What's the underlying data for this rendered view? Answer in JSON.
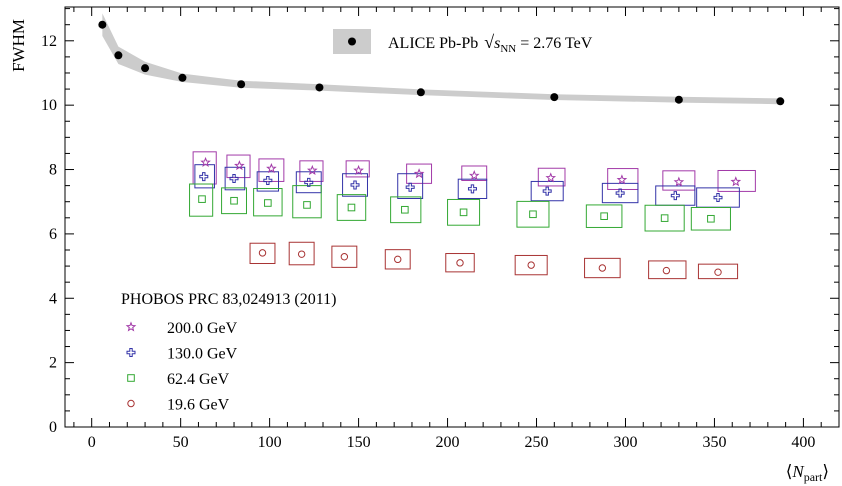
{
  "chart_data": {
    "type": "scatter",
    "xlabel": "⟨N_part⟩",
    "ylabel": "FWHM",
    "xlim": [
      -15,
      420
    ],
    "ylim": [
      0,
      13.05
    ],
    "x_ticks": [
      0,
      50,
      100,
      150,
      200,
      250,
      300,
      350,
      400
    ],
    "y_ticks": [
      0,
      2,
      4,
      6,
      8,
      10,
      12
    ],
    "grid": false,
    "alice": {
      "label": "ALICE Pb-Pb √s_NN = 2.76 TeV",
      "label_text": "ALICE Pb-Pb",
      "label_energy": "= 2.76 TeV",
      "points": [
        {
          "x": 6,
          "y": 12.5
        },
        {
          "x": 15,
          "y": 11.55
        },
        {
          "x": 30,
          "y": 11.15
        },
        {
          "x": 51,
          "y": 10.85
        },
        {
          "x": 84,
          "y": 10.65
        },
        {
          "x": 128,
          "y": 10.55
        },
        {
          "x": 185,
          "y": 10.4
        },
        {
          "x": 260,
          "y": 10.25
        },
        {
          "x": 330,
          "y": 10.17
        },
        {
          "x": 387,
          "y": 10.12
        }
      ],
      "band_half_width": [
        0.35,
        0.27,
        0.2,
        0.13,
        0.11,
        0.1,
        0.09,
        0.09,
        0.09,
        0.09
      ],
      "marker_color": "#000000",
      "band_color": "#cccccc"
    },
    "phobos_title": "PHOBOS PRC 83,024913 (2011)",
    "series": [
      {
        "name": "200.0 GeV",
        "marker": "star",
        "color": "#a23aa8",
        "points": [
          {
            "x": 64,
            "y": 8.22,
            "ylo": 7.55,
            "yhi": 8.55,
            "xlo": 57,
            "xhi": 70
          },
          {
            "x": 83,
            "y": 8.12,
            "ylo": 7.75,
            "yhi": 8.45,
            "xlo": 76,
            "xhi": 89
          },
          {
            "x": 101,
            "y": 8.03,
            "ylo": 7.63,
            "yhi": 8.33,
            "xlo": 94,
            "xhi": 108
          },
          {
            "x": 124,
            "y": 7.97,
            "ylo": 7.63,
            "yhi": 8.27,
            "xlo": 117,
            "xhi": 130
          },
          {
            "x": 150,
            "y": 7.97,
            "ylo": 7.77,
            "yhi": 8.27,
            "xlo": 143,
            "xhi": 156
          },
          {
            "x": 184,
            "y": 7.87,
            "ylo": 7.57,
            "yhi": 8.17,
            "xlo": 177,
            "xhi": 191
          },
          {
            "x": 215,
            "y": 7.81,
            "ylo": 7.66,
            "yhi": 8.11,
            "xlo": 208,
            "xhi": 222
          },
          {
            "x": 258,
            "y": 7.74,
            "ylo": 7.49,
            "yhi": 8.04,
            "xlo": 251,
            "xhi": 266
          },
          {
            "x": 298,
            "y": 7.68,
            "ylo": 7.38,
            "yhi": 8.03,
            "xlo": 290,
            "xhi": 307
          },
          {
            "x": 330,
            "y": 7.61,
            "ylo": 7.36,
            "yhi": 7.96,
            "xlo": 321,
            "xhi": 339
          },
          {
            "x": 362,
            "y": 7.62,
            "ylo": 7.32,
            "yhi": 7.97,
            "xlo": 352,
            "xhi": 373
          }
        ]
      },
      {
        "name": "130.0 GeV",
        "marker": "cross",
        "color": "#3333a8",
        "points": [
          {
            "x": 63,
            "y": 7.78,
            "ylo": 7.43,
            "yhi": 8.15,
            "xlo": 58,
            "xhi": 69
          },
          {
            "x": 80,
            "y": 7.72,
            "ylo": 7.37,
            "yhi": 8.07,
            "xlo": 75,
            "xhi": 86
          },
          {
            "x": 99,
            "y": 7.66,
            "ylo": 7.33,
            "yhi": 7.93,
            "xlo": 93,
            "xhi": 105
          },
          {
            "x": 122,
            "y": 7.6,
            "ylo": 7.28,
            "yhi": 7.93,
            "xlo": 115,
            "xhi": 129
          },
          {
            "x": 148,
            "y": 7.52,
            "ylo": 7.17,
            "yhi": 7.87,
            "xlo": 141,
            "xhi": 155
          },
          {
            "x": 179,
            "y": 7.45,
            "ylo": 7.1,
            "yhi": 7.87,
            "xlo": 172,
            "xhi": 186
          },
          {
            "x": 214,
            "y": 7.4,
            "ylo": 7.1,
            "yhi": 7.7,
            "xlo": 206,
            "xhi": 222
          },
          {
            "x": 256,
            "y": 7.33,
            "ylo": 7.03,
            "yhi": 7.63,
            "xlo": 247,
            "xhi": 265
          },
          {
            "x": 297,
            "y": 7.27,
            "ylo": 6.97,
            "yhi": 7.57,
            "xlo": 287,
            "xhi": 307
          },
          {
            "x": 328,
            "y": 7.19,
            "ylo": 6.89,
            "yhi": 7.49,
            "xlo": 317,
            "xhi": 339
          },
          {
            "x": 352,
            "y": 7.13,
            "ylo": 6.83,
            "yhi": 7.43,
            "xlo": 340,
            "xhi": 364
          }
        ]
      },
      {
        "name": "62.4 GeV",
        "marker": "square",
        "color": "#33a833",
        "points": [
          {
            "x": 62,
            "y": 7.08,
            "ylo": 6.55,
            "yhi": 7.55,
            "xlo": 55,
            "xhi": 68
          },
          {
            "x": 80,
            "y": 7.03,
            "ylo": 6.63,
            "yhi": 7.43,
            "xlo": 73,
            "xhi": 87
          },
          {
            "x": 99,
            "y": 6.96,
            "ylo": 6.56,
            "yhi": 7.41,
            "xlo": 91,
            "xhi": 107
          },
          {
            "x": 121,
            "y": 6.9,
            "ylo": 6.5,
            "yhi": 7.5,
            "xlo": 113,
            "xhi": 129
          },
          {
            "x": 146,
            "y": 6.82,
            "ylo": 6.42,
            "yhi": 7.22,
            "xlo": 138,
            "xhi": 154
          },
          {
            "x": 176,
            "y": 6.75,
            "ylo": 6.35,
            "yhi": 7.15,
            "xlo": 168,
            "xhi": 185
          },
          {
            "x": 209,
            "y": 6.67,
            "ylo": 6.27,
            "yhi": 7.07,
            "xlo": 200,
            "xhi": 218
          },
          {
            "x": 248,
            "y": 6.61,
            "ylo": 6.21,
            "yhi": 7.01,
            "xlo": 239,
            "xhi": 257
          },
          {
            "x": 288,
            "y": 6.55,
            "ylo": 6.2,
            "yhi": 6.9,
            "xlo": 278,
            "xhi": 298
          },
          {
            "x": 322,
            "y": 6.49,
            "ylo": 6.09,
            "yhi": 6.89,
            "xlo": 311,
            "xhi": 333
          },
          {
            "x": 348,
            "y": 6.47,
            "ylo": 6.12,
            "yhi": 6.82,
            "xlo": 337,
            "xhi": 359
          }
        ]
      },
      {
        "name": "19.6 GeV",
        "marker": "circle",
        "color": "#a83333",
        "points": [
          {
            "x": 96,
            "y": 5.41,
            "ylo": 5.08,
            "yhi": 5.71,
            "xlo": 89,
            "xhi": 103
          },
          {
            "x": 118,
            "y": 5.37,
            "ylo": 5.04,
            "yhi": 5.74,
            "xlo": 111,
            "xhi": 125
          },
          {
            "x": 142,
            "y": 5.29,
            "ylo": 4.96,
            "yhi": 5.62,
            "xlo": 135,
            "xhi": 149
          },
          {
            "x": 172,
            "y": 5.21,
            "ylo": 4.91,
            "yhi": 5.51,
            "xlo": 165,
            "xhi": 179
          },
          {
            "x": 207,
            "y": 5.1,
            "ylo": 4.82,
            "yhi": 5.39,
            "xlo": 199,
            "xhi": 215
          },
          {
            "x": 247,
            "y": 5.03,
            "ylo": 4.73,
            "yhi": 5.33,
            "xlo": 238,
            "xhi": 256
          },
          {
            "x": 287,
            "y": 4.94,
            "ylo": 4.64,
            "yhi": 5.24,
            "xlo": 277,
            "xhi": 297
          },
          {
            "x": 323,
            "y": 4.86,
            "ylo": 4.61,
            "yhi": 5.16,
            "xlo": 313,
            "xhi": 334
          },
          {
            "x": 352,
            "y": 4.81,
            "ylo": 4.61,
            "yhi": 5.06,
            "xlo": 341,
            "xhi": 363
          }
        ]
      }
    ]
  }
}
